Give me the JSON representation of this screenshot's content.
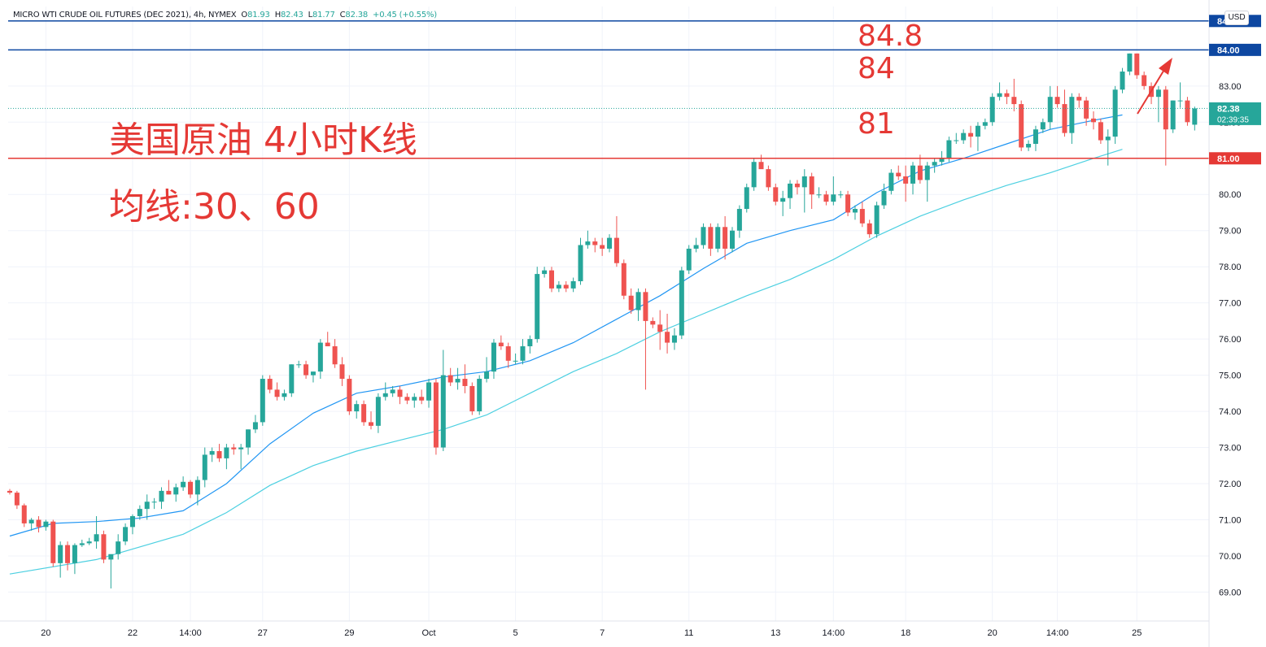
{
  "header": {
    "symbol": "MICRO WTI CRUDE OIL FUTURES (DEC 2021), 4h, NYMEX",
    "o_label": "O",
    "o_value": "81.93",
    "h_label": "H",
    "h_value": "82.43",
    "l_label": "L",
    "l_value": "81.77",
    "c_label": "C",
    "c_value": "82.38",
    "change": "+0.45 (+0.55%)"
  },
  "currency_label": "USD",
  "annotations": {
    "title": "美国原油 4小时K线",
    "ma_note": "均线:30、60",
    "level_84_8": "84.8",
    "level_84": "84",
    "level_81": "81"
  },
  "price_tags": {
    "last_price": "82.38",
    "countdown": "02:39:35",
    "tag_84_8": "84.80",
    "tag_84": "84.00",
    "tag_81": "81.00"
  },
  "colors": {
    "bull": "#26a69a",
    "bear": "#ef5350",
    "ma30": "#2196f3",
    "ma60": "#4dd0e1",
    "support": "#e53935",
    "resistance": "#0d47a1",
    "annotation": "#e53935"
  },
  "chart_data": {
    "type": "candlestick",
    "title": "MICRO WTI CRUDE OIL FUTURES (DEC 2021), 4h, NYMEX",
    "ylim": [
      68.2,
      85.2
    ],
    "y_ticks": [
      "69.00",
      "70.00",
      "71.00",
      "72.00",
      "73.00",
      "74.00",
      "75.00",
      "76.00",
      "77.00",
      "78.00",
      "79.00",
      "80.00",
      "81.00",
      "82.00",
      "83.00",
      "84.00"
    ],
    "x_ticks": [
      {
        "label": "20",
        "bar": 5
      },
      {
        "label": "22",
        "bar": 17
      },
      {
        "label": "14:00",
        "bar": 25
      },
      {
        "label": "27",
        "bar": 35
      },
      {
        "label": "29",
        "bar": 47
      },
      {
        "label": "Oct",
        "bar": 58
      },
      {
        "label": "5",
        "bar": 70
      },
      {
        "label": "7",
        "bar": 82
      },
      {
        "label": "11",
        "bar": 94
      },
      {
        "label": "13",
        "bar": 106
      },
      {
        "label": "14:00",
        "bar": 114
      },
      {
        "label": "18",
        "bar": 124
      },
      {
        "label": "20",
        "bar": 136
      },
      {
        "label": "14:00",
        "bar": 145
      },
      {
        "label": "25",
        "bar": 156
      }
    ],
    "candles": [
      [
        71.8,
        71.85,
        71.7,
        71.75
      ],
      [
        71.75,
        71.8,
        71.3,
        71.4
      ],
      [
        71.4,
        71.45,
        70.8,
        70.9
      ],
      [
        70.9,
        71.05,
        70.7,
        71.0
      ],
      [
        71.0,
        71.1,
        70.65,
        70.8
      ],
      [
        70.8,
        71.0,
        70.7,
        70.95
      ],
      [
        70.95,
        71.0,
        69.7,
        69.8
      ],
      [
        69.8,
        70.4,
        69.4,
        70.3
      ],
      [
        70.3,
        70.4,
        69.6,
        69.8
      ],
      [
        69.8,
        70.35,
        69.5,
        70.3
      ],
      [
        70.3,
        70.45,
        70.25,
        70.35
      ],
      [
        70.35,
        70.5,
        70.3,
        70.4
      ],
      [
        70.4,
        71.1,
        70.2,
        70.6
      ],
      [
        70.6,
        70.7,
        69.8,
        69.9
      ],
      [
        69.9,
        70.0,
        69.1,
        70.05
      ],
      [
        70.05,
        70.6,
        69.9,
        70.4
      ],
      [
        70.4,
        70.9,
        70.3,
        70.8
      ],
      [
        70.8,
        71.15,
        70.6,
        71.1
      ],
      [
        71.1,
        71.4,
        71.0,
        71.3
      ],
      [
        71.3,
        71.7,
        71.0,
        71.5
      ],
      [
        71.5,
        71.6,
        71.3,
        71.5
      ],
      [
        71.5,
        71.9,
        71.3,
        71.8
      ],
      [
        71.8,
        72.1,
        71.7,
        71.7
      ],
      [
        71.7,
        72.0,
        71.5,
        71.9
      ],
      [
        71.9,
        72.2,
        71.8,
        72.05
      ],
      [
        72.05,
        72.1,
        71.6,
        71.7
      ],
      [
        71.7,
        72.2,
        71.4,
        72.1
      ],
      [
        72.1,
        73.0,
        71.9,
        72.8
      ],
      [
        72.8,
        73.0,
        72.6,
        72.9
      ],
      [
        72.9,
        73.1,
        72.6,
        72.7
      ],
      [
        72.7,
        73.1,
        72.4,
        73.0
      ],
      [
        73.0,
        73.1,
        72.8,
        72.95
      ],
      [
        72.95,
        73.1,
        72.4,
        73.0
      ],
      [
        73.0,
        73.5,
        72.8,
        73.5
      ],
      [
        73.5,
        73.9,
        73.4,
        73.7
      ],
      [
        73.7,
        75.0,
        73.6,
        74.9
      ],
      [
        74.9,
        75.0,
        74.5,
        74.6
      ],
      [
        74.6,
        74.8,
        74.3,
        74.4
      ],
      [
        74.4,
        74.6,
        74.3,
        74.5
      ],
      [
        74.5,
        75.3,
        74.4,
        75.3
      ],
      [
        75.3,
        75.4,
        75.2,
        75.3
      ],
      [
        75.3,
        75.4,
        74.9,
        75.0
      ],
      [
        75.0,
        75.1,
        74.8,
        75.1
      ],
      [
        75.1,
        76.0,
        74.9,
        75.9
      ],
      [
        75.9,
        76.2,
        75.8,
        75.8
      ],
      [
        75.8,
        76.0,
        75.2,
        75.3
      ],
      [
        75.3,
        75.5,
        74.7,
        74.9
      ],
      [
        74.9,
        75.0,
        73.9,
        74.0
      ],
      [
        74.0,
        74.3,
        73.8,
        74.2
      ],
      [
        74.2,
        74.3,
        73.6,
        73.7
      ],
      [
        73.7,
        74.0,
        73.5,
        73.6
      ],
      [
        73.6,
        74.5,
        73.4,
        74.4
      ],
      [
        74.4,
        74.8,
        74.3,
        74.5
      ],
      [
        74.5,
        74.7,
        74.4,
        74.6
      ],
      [
        74.6,
        74.7,
        74.2,
        74.4
      ],
      [
        74.4,
        74.5,
        74.2,
        74.3
      ],
      [
        74.3,
        74.5,
        74.1,
        74.4
      ],
      [
        74.4,
        74.6,
        74.2,
        74.3
      ],
      [
        74.3,
        74.9,
        74.1,
        74.8
      ],
      [
        74.8,
        74.9,
        72.8,
        73.0
      ],
      [
        73.0,
        75.7,
        72.9,
        75.0
      ],
      [
        75.0,
        75.2,
        74.7,
        74.8
      ],
      [
        74.8,
        75.2,
        74.6,
        74.9
      ],
      [
        74.9,
        75.3,
        74.5,
        74.7
      ],
      [
        74.7,
        74.8,
        73.9,
        74.0
      ],
      [
        74.0,
        75.0,
        73.9,
        74.9
      ],
      [
        74.9,
        75.5,
        74.8,
        75.1
      ],
      [
        75.1,
        76.0,
        74.9,
        75.9
      ],
      [
        75.9,
        76.1,
        75.7,
        75.8
      ],
      [
        75.8,
        75.9,
        75.2,
        75.4
      ],
      [
        75.4,
        75.6,
        75.3,
        75.4
      ],
      [
        75.4,
        76.0,
        75.3,
        75.8
      ],
      [
        75.8,
        76.1,
        75.6,
        76.0
      ],
      [
        76.0,
        78.0,
        75.9,
        77.8
      ],
      [
        77.8,
        78.0,
        77.7,
        77.9
      ],
      [
        77.9,
        78.0,
        77.3,
        77.4
      ],
      [
        77.4,
        77.6,
        77.3,
        77.5
      ],
      [
        77.5,
        77.6,
        77.3,
        77.4
      ],
      [
        77.4,
        77.7,
        77.3,
        77.6
      ],
      [
        77.6,
        78.8,
        77.5,
        78.6
      ],
      [
        78.6,
        79.0,
        78.5,
        78.7
      ],
      [
        78.7,
        78.8,
        78.4,
        78.6
      ],
      [
        78.6,
        78.8,
        78.3,
        78.5
      ],
      [
        78.5,
        78.9,
        78.4,
        78.8
      ],
      [
        78.8,
        79.4,
        78.0,
        78.1
      ],
      [
        78.1,
        78.2,
        77.1,
        77.2
      ],
      [
        77.2,
        77.4,
        76.7,
        76.8
      ],
      [
        76.8,
        77.4,
        76.5,
        77.3
      ],
      [
        77.3,
        77.4,
        74.6,
        76.5
      ],
      [
        76.5,
        76.6,
        76.3,
        76.4
      ],
      [
        76.4,
        76.8,
        75.7,
        76.2
      ],
      [
        76.2,
        76.7,
        75.6,
        75.9
      ],
      [
        75.9,
        76.3,
        75.7,
        76.1
      ],
      [
        76.1,
        78.0,
        76.0,
        77.9
      ],
      [
        77.9,
        78.6,
        77.8,
        78.5
      ],
      [
        78.5,
        78.8,
        78.4,
        78.6
      ],
      [
        78.6,
        79.2,
        78.5,
        79.1
      ],
      [
        79.1,
        79.2,
        78.3,
        78.5
      ],
      [
        78.5,
        79.2,
        78.4,
        79.1
      ],
      [
        79.1,
        79.4,
        78.2,
        78.5
      ],
      [
        78.5,
        79.1,
        78.4,
        79.0
      ],
      [
        79.0,
        79.7,
        78.8,
        79.6
      ],
      [
        79.6,
        80.3,
        79.5,
        80.2
      ],
      [
        80.2,
        81.0,
        80.1,
        80.9
      ],
      [
        80.9,
        81.1,
        80.8,
        80.7
      ],
      [
        80.7,
        80.8,
        80.1,
        80.2
      ],
      [
        80.2,
        80.3,
        79.7,
        79.8
      ],
      [
        79.8,
        80.1,
        79.4,
        79.9
      ],
      [
        79.9,
        80.4,
        79.6,
        80.3
      ],
      [
        80.3,
        80.4,
        80.0,
        80.2
      ],
      [
        80.2,
        80.7,
        79.5,
        80.5
      ],
      [
        80.5,
        80.6,
        79.6,
        80.0
      ],
      [
        80.0,
        80.2,
        79.9,
        80.0
      ],
      [
        80.0,
        80.1,
        79.7,
        79.8
      ],
      [
        79.8,
        80.5,
        79.7,
        80.0
      ],
      [
        80.0,
        80.1,
        79.9,
        80.0
      ],
      [
        80.0,
        80.1,
        79.4,
        79.5
      ],
      [
        79.5,
        79.7,
        79.3,
        79.6
      ],
      [
        79.6,
        79.8,
        79.1,
        79.2
      ],
      [
        79.2,
        79.3,
        78.8,
        78.9
      ],
      [
        78.9,
        79.8,
        78.8,
        79.7
      ],
      [
        79.7,
        80.3,
        79.6,
        80.1
      ],
      [
        80.1,
        80.7,
        80.0,
        80.6
      ],
      [
        80.6,
        80.8,
        80.4,
        80.5
      ],
      [
        80.5,
        80.8,
        79.8,
        80.3
      ],
      [
        80.3,
        80.9,
        80.0,
        80.8
      ],
      [
        80.8,
        81.1,
        80.3,
        80.4
      ],
      [
        80.4,
        80.9,
        79.8,
        80.8
      ],
      [
        80.8,
        81.0,
        80.6,
        80.9
      ],
      [
        80.9,
        81.2,
        80.8,
        81.0
      ],
      [
        81.0,
        81.6,
        80.9,
        81.5
      ],
      [
        81.5,
        81.7,
        81.4,
        81.5
      ],
      [
        81.5,
        81.8,
        81.4,
        81.7
      ],
      [
        81.7,
        81.9,
        81.3,
        81.6
      ],
      [
        81.6,
        82.0,
        81.2,
        81.9
      ],
      [
        81.9,
        82.1,
        81.8,
        82.0
      ],
      [
        82.0,
        82.8,
        81.9,
        82.7
      ],
      [
        82.7,
        83.1,
        82.6,
        82.8
      ],
      [
        82.8,
        82.9,
        82.5,
        82.7
      ],
      [
        82.7,
        83.2,
        82.3,
        82.5
      ],
      [
        82.5,
        82.6,
        81.2,
        81.3
      ],
      [
        81.3,
        81.5,
        81.2,
        81.4
      ],
      [
        81.4,
        81.9,
        81.2,
        81.8
      ],
      [
        81.8,
        82.1,
        81.7,
        82.0
      ],
      [
        82.0,
        83.0,
        81.8,
        82.7
      ],
      [
        82.7,
        83.0,
        82.4,
        82.5
      ],
      [
        82.5,
        82.9,
        81.6,
        81.7
      ],
      [
        81.7,
        82.8,
        81.4,
        82.7
      ],
      [
        82.7,
        82.8,
        82.4,
        82.6
      ],
      [
        82.6,
        82.7,
        81.9,
        82.1
      ],
      [
        82.1,
        82.3,
        81.8,
        82.0
      ],
      [
        82.0,
        82.1,
        81.4,
        81.5
      ],
      [
        81.5,
        81.8,
        80.8,
        81.6
      ],
      [
        81.6,
        83.0,
        81.4,
        82.9
      ],
      [
        82.9,
        83.5,
        82.8,
        83.4
      ],
      [
        83.4,
        83.9,
        83.3,
        83.9
      ],
      [
        83.9,
        83.9,
        83.2,
        83.3
      ],
      [
        83.3,
        83.4,
        82.9,
        83.0
      ],
      [
        83.0,
        83.1,
        82.5,
        82.7
      ],
      [
        82.7,
        83.0,
        82.0,
        82.9
      ],
      [
        82.9,
        83.0,
        80.8,
        81.8
      ],
      [
        81.8,
        82.6,
        81.7,
        82.6
      ],
      [
        82.6,
        83.1,
        82.4,
        82.6
      ],
      [
        82.6,
        82.7,
        81.9,
        82.0
      ],
      [
        81.93,
        82.43,
        81.77,
        82.38
      ]
    ],
    "ma30": [
      [
        0,
        70.55
      ],
      [
        6,
        70.9
      ],
      [
        12,
        70.95
      ],
      [
        18,
        71.05
      ],
      [
        24,
        71.25
      ],
      [
        30,
        72.0
      ],
      [
        36,
        73.1
      ],
      [
        42,
        73.95
      ],
      [
        48,
        74.5
      ],
      [
        54,
        74.7
      ],
      [
        60,
        74.95
      ],
      [
        66,
        75.1
      ],
      [
        72,
        75.4
      ],
      [
        78,
        75.9
      ],
      [
        84,
        76.55
      ],
      [
        90,
        77.2
      ],
      [
        96,
        77.95
      ],
      [
        102,
        78.65
      ],
      [
        108,
        79.0
      ],
      [
        114,
        79.3
      ],
      [
        120,
        80.05
      ],
      [
        126,
        80.65
      ],
      [
        132,
        81.0
      ],
      [
        138,
        81.4
      ],
      [
        144,
        81.8
      ],
      [
        150,
        82.05
      ],
      [
        154,
        82.2
      ]
    ],
    "ma60": [
      [
        0,
        69.5
      ],
      [
        12,
        69.9
      ],
      [
        24,
        70.6
      ],
      [
        30,
        71.2
      ],
      [
        36,
        71.95
      ],
      [
        42,
        72.5
      ],
      [
        48,
        72.9
      ],
      [
        54,
        73.2
      ],
      [
        60,
        73.5
      ],
      [
        66,
        73.9
      ],
      [
        72,
        74.5
      ],
      [
        78,
        75.1
      ],
      [
        84,
        75.6
      ],
      [
        90,
        76.2
      ],
      [
        96,
        76.7
      ],
      [
        102,
        77.2
      ],
      [
        108,
        77.65
      ],
      [
        114,
        78.2
      ],
      [
        120,
        78.85
      ],
      [
        126,
        79.4
      ],
      [
        132,
        79.85
      ],
      [
        138,
        80.25
      ],
      [
        144,
        80.6
      ],
      [
        150,
        81.0
      ],
      [
        154,
        81.25
      ]
    ],
    "horizontal_lines": [
      {
        "price": 84.8,
        "tag": "84.80"
      },
      {
        "price": 84.0,
        "tag": "84.00"
      },
      {
        "price": 81.0,
        "tag": "81.00"
      },
      {
        "price": 82.38,
        "tag": "82.38"
      }
    ]
  }
}
